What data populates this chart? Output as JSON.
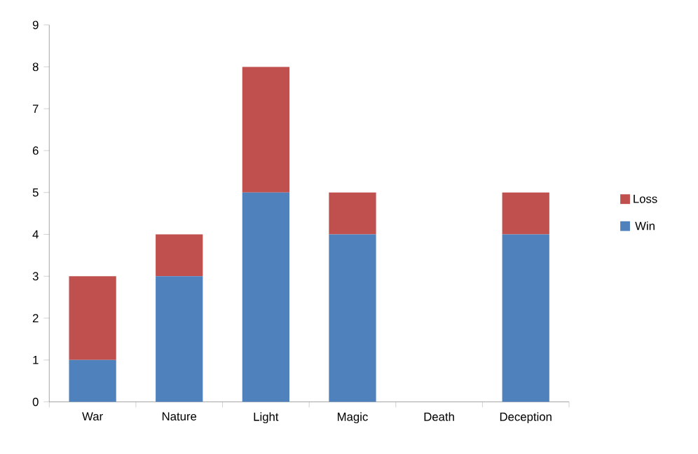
{
  "chart_data": {
    "type": "bar",
    "stacked": true,
    "categories": [
      "War",
      "Nature",
      "Light",
      "Magic",
      "Death",
      "Deception"
    ],
    "series": [
      {
        "name": "Win",
        "color": "#4f81bd",
        "values": [
          1,
          3,
          5,
          4,
          0,
          4
        ]
      },
      {
        "name": "Loss",
        "color": "#c0504d",
        "values": [
          2,
          1,
          3,
          1,
          0,
          1
        ]
      }
    ],
    "ylim": [
      0,
      9
    ],
    "yticks": [
      0,
      1,
      2,
      3,
      4,
      5,
      6,
      7,
      8,
      9
    ],
    "legend": "right",
    "grid": false
  }
}
